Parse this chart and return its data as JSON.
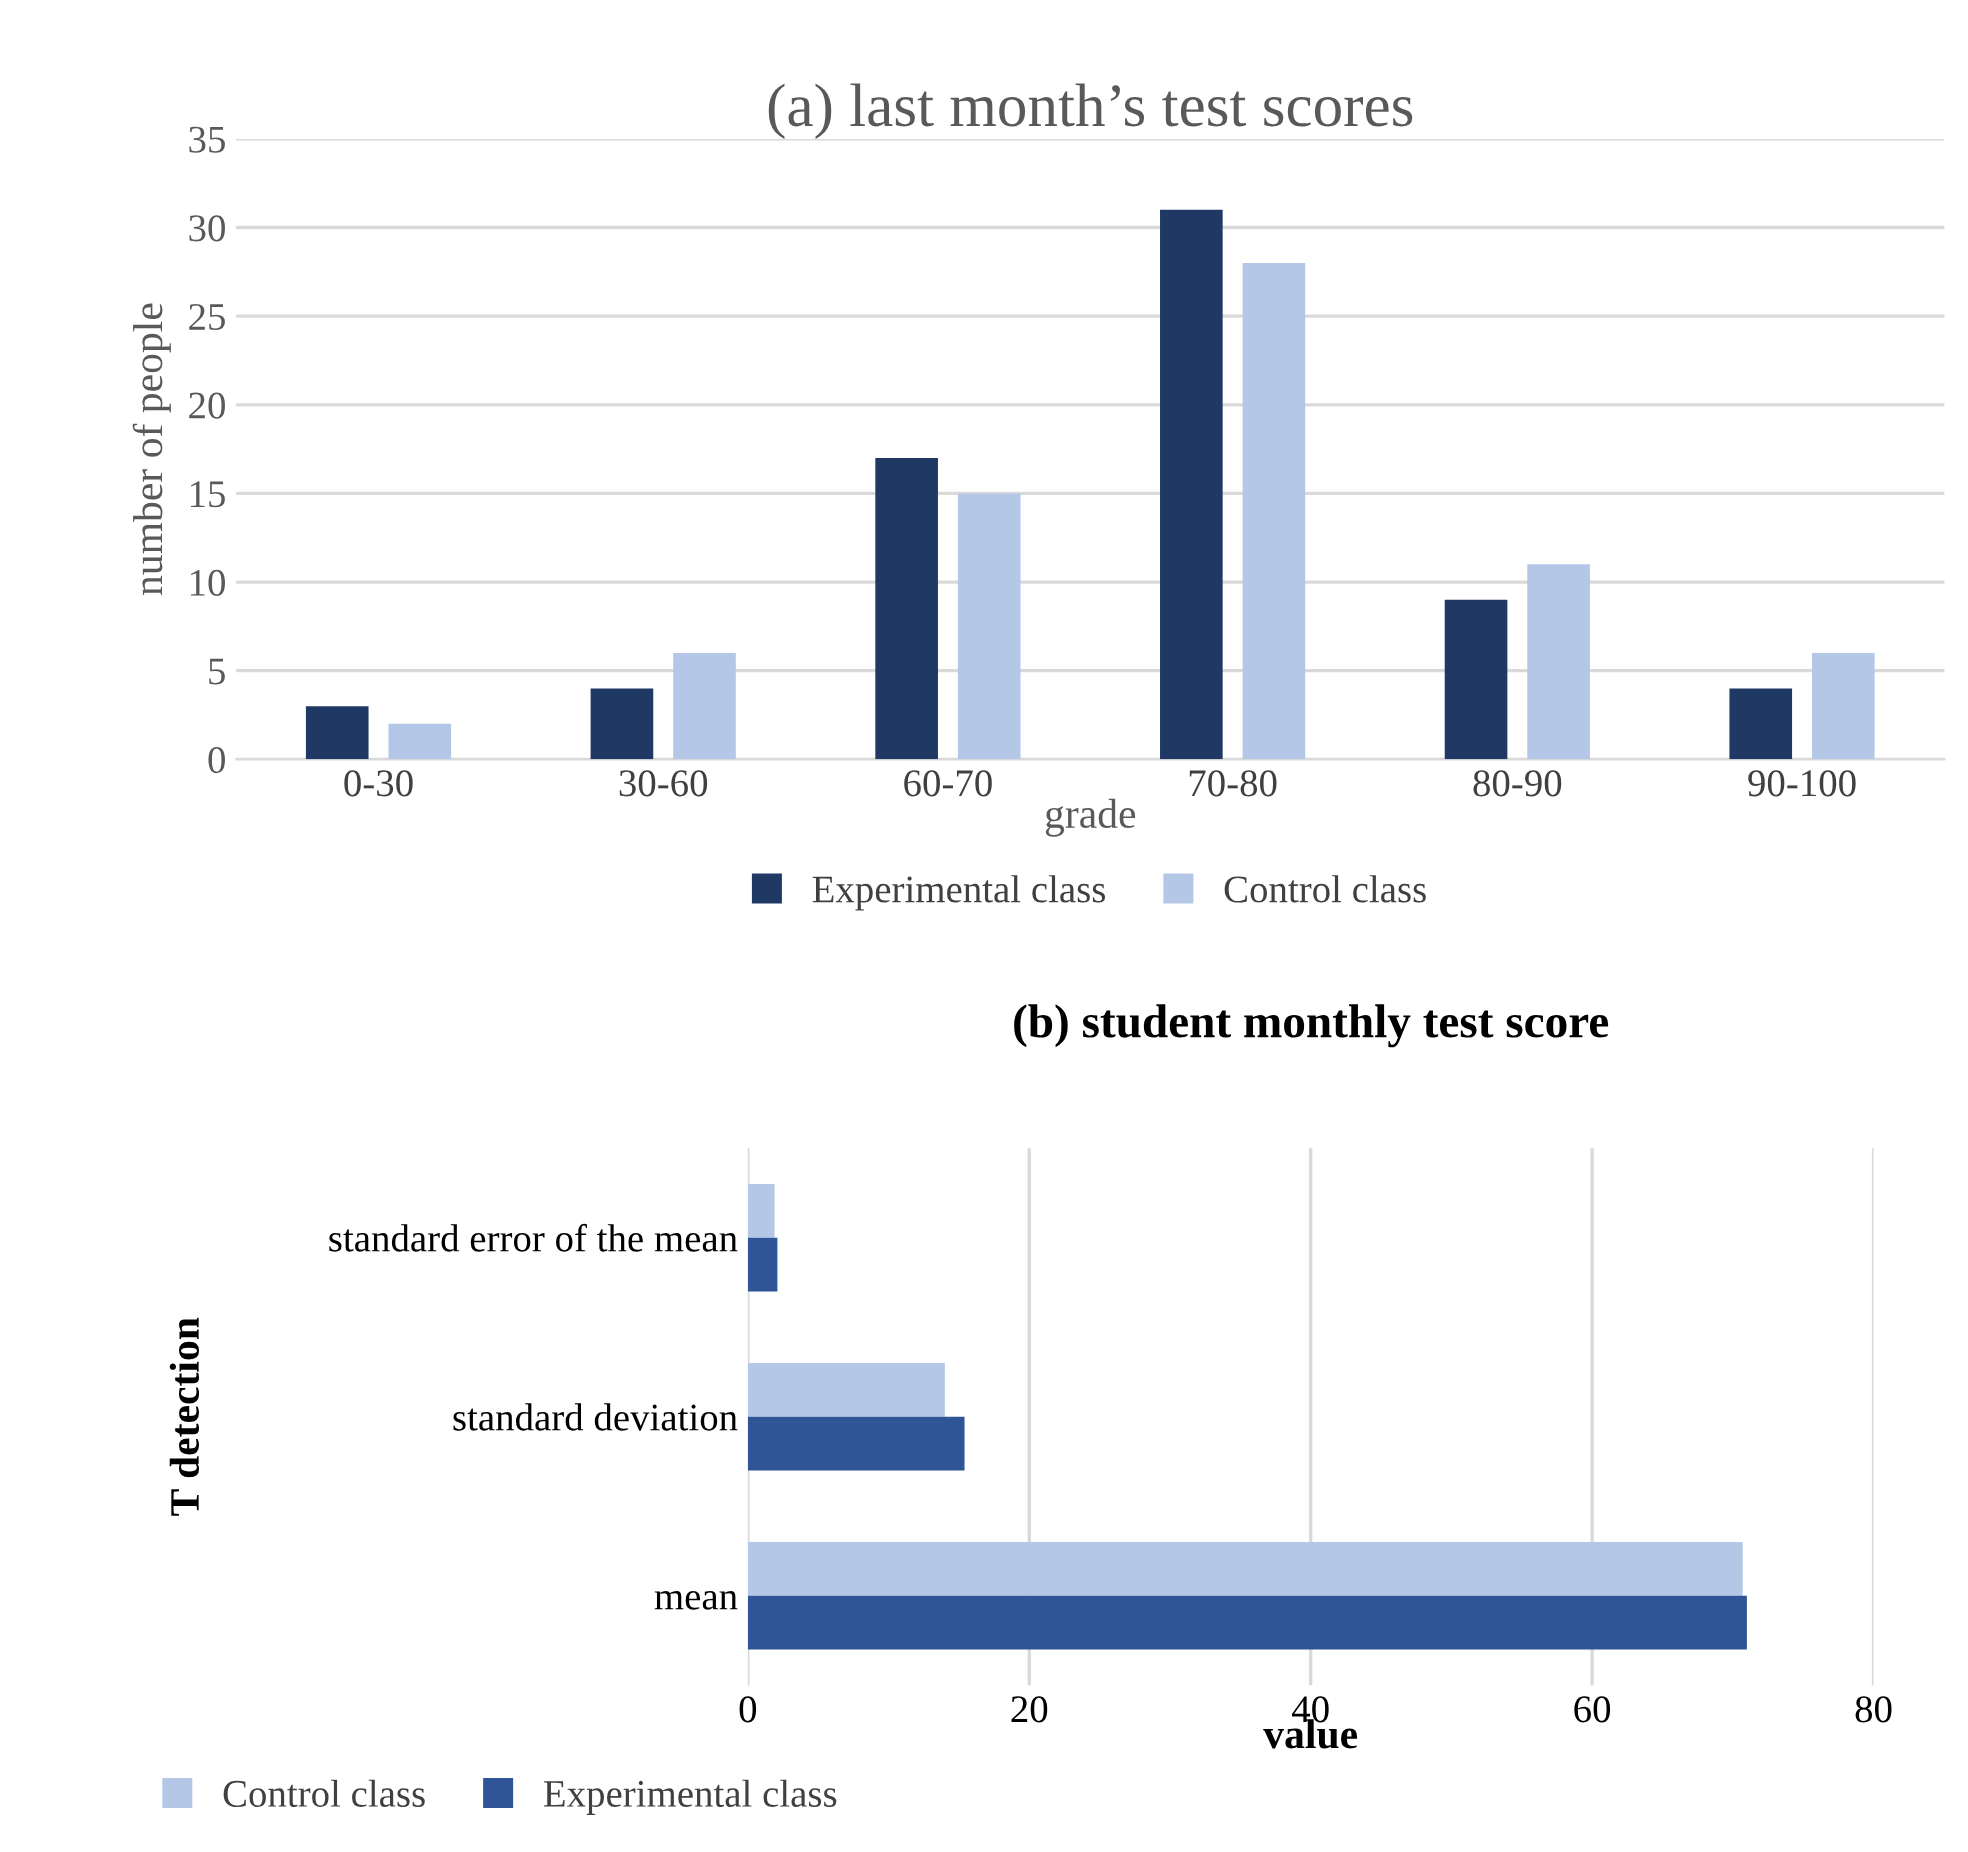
{
  "chart_data": [
    {
      "type": "bar",
      "title": "(a) last month’s test scores",
      "xlabel": "grade",
      "ylabel": "number of people",
      "categories": [
        "0-30",
        "30-60",
        "60-70",
        "70-80",
        "80-90",
        "90-100"
      ],
      "series": [
        {
          "name": "Experimental class",
          "color": "#203864",
          "values": [
            3,
            4,
            17,
            31,
            9,
            4
          ]
        },
        {
          "name": "Control class",
          "color": "#b4c7e7",
          "values": [
            2,
            6,
            15,
            28,
            11,
            6
          ]
        }
      ],
      "ylim": [
        0,
        35
      ],
      "yticks": [
        0,
        5,
        10,
        15,
        20,
        25,
        30,
        35
      ],
      "grid": "y",
      "legend": "bottom"
    },
    {
      "type": "bar",
      "orientation": "horizontal",
      "title": "(b) student monthly test score",
      "xlabel": "value",
      "ylabel": "T detection",
      "categories": [
        "standard error of the mean",
        "standard deviation",
        "mean"
      ],
      "series": [
        {
          "name": "Control class",
          "color": "#b4c7e7",
          "values": [
            1.9,
            14,
            70.7
          ]
        },
        {
          "name": "Experimental class",
          "color": "#2f5597",
          "values": [
            2.1,
            15.4,
            71
          ]
        }
      ],
      "xlim": [
        0,
        80
      ],
      "xticks": [
        0,
        20,
        40,
        60,
        80
      ],
      "grid": "x",
      "legend": "bottom left"
    }
  ]
}
